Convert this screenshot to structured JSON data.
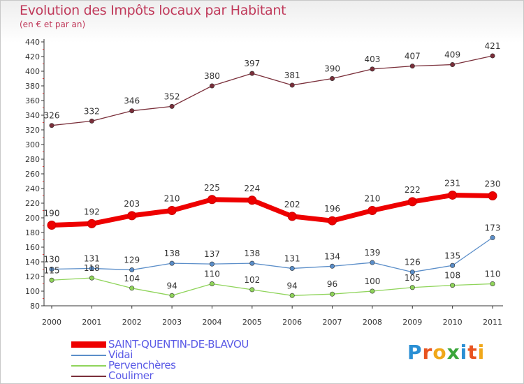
{
  "title": "Evolution des Impôts locaux par Habitant",
  "subtitle": "(en € et par an)",
  "logo": {
    "letters": [
      "P",
      "r",
      "o",
      "x",
      "i",
      "t",
      "i"
    ],
    "colors": [
      "#2a8fd4",
      "#e8531f",
      "#f0a81a",
      "#3aa63a",
      "#2a8fd4",
      "#e8531f",
      "#f0a81a"
    ]
  },
  "chart_data": {
    "type": "line",
    "title": "Evolution des Impôts locaux par Habitant",
    "subtitle": "(en € et par an)",
    "xlabel": "",
    "ylabel": "",
    "categories": [
      "2000",
      "2001",
      "2002",
      "2003",
      "2004",
      "2005",
      "2006",
      "2007",
      "2008",
      "2009",
      "2010",
      "2011"
    ],
    "ylim": [
      80,
      440
    ],
    "yticks": [
      80,
      100,
      120,
      140,
      160,
      180,
      200,
      220,
      240,
      260,
      280,
      300,
      320,
      340,
      360,
      380,
      400,
      420,
      440
    ],
    "grid": false,
    "legend_position": "bottom-left",
    "series": [
      {
        "name": "SAINT-QUENTIN-DE-BLAVOU",
        "color": "#ee0000",
        "values": [
          190,
          192,
          203,
          210,
          225,
          224,
          202,
          196,
          210,
          222,
          231,
          230
        ]
      },
      {
        "name": "Vidai",
        "color": "#5b8ec9",
        "values": [
          130,
          131,
          129,
          138,
          137,
          138,
          131,
          134,
          139,
          126,
          135,
          173
        ]
      },
      {
        "name": "Pervenchères",
        "color": "#8fd45a",
        "values": [
          115,
          118,
          104,
          94,
          110,
          102,
          94,
          96,
          100,
          105,
          108,
          110
        ]
      },
      {
        "name": "Coulimer",
        "color": "#7a2f3a",
        "values": [
          326,
          332,
          346,
          352,
          380,
          397,
          381,
          390,
          403,
          407,
          409,
          421
        ]
      }
    ]
  }
}
